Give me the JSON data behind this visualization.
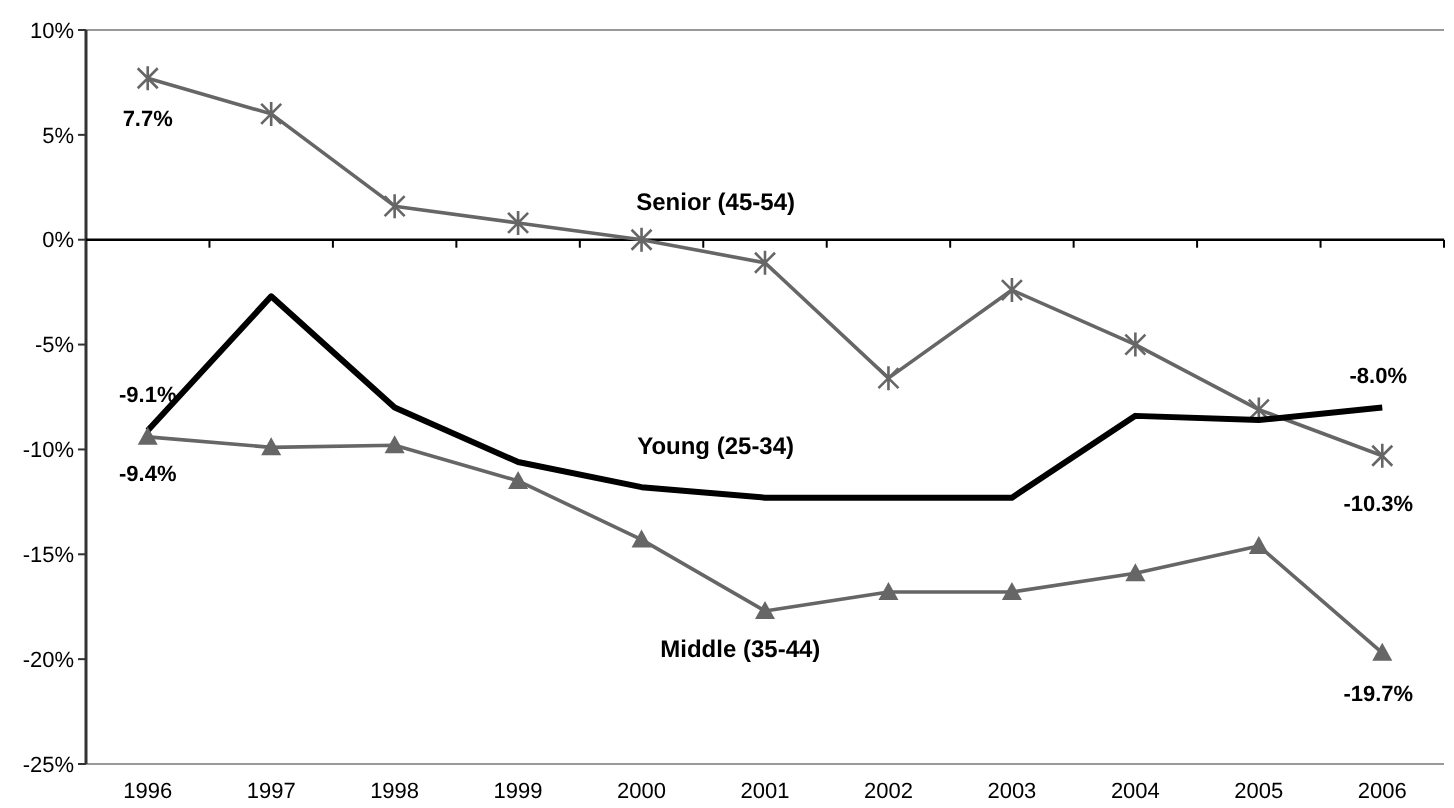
{
  "chart_data": {
    "type": "line",
    "categories": [
      "1996",
      "1997",
      "1998",
      "1999",
      "2000",
      "2001",
      "2002",
      "2003",
      "2004",
      "2005",
      "2006"
    ],
    "ylim": [
      -25,
      10
    ],
    "yticks": [
      {
        "value": 10,
        "label": "10%"
      },
      {
        "value": 5,
        "label": "5%"
      },
      {
        "value": 0,
        "label": "0%"
      },
      {
        "value": -5,
        "label": "-5%"
      },
      {
        "value": -10,
        "label": "-10%"
      },
      {
        "value": -15,
        "label": "-15%"
      },
      {
        "value": -20,
        "label": "-20%"
      },
      {
        "value": -25,
        "label": "-25%"
      }
    ],
    "series": [
      {
        "name": "Senior (45-54)",
        "color": "#666666",
        "marker": "cross",
        "values": [
          7.7,
          6.0,
          1.6,
          0.8,
          0.0,
          -1.1,
          -6.6,
          -2.4,
          -5.0,
          -8.1,
          -10.3
        ],
        "value_labels": [
          "7.7%",
          null,
          null,
          null,
          null,
          null,
          null,
          null,
          null,
          null,
          "-10.3%"
        ]
      },
      {
        "name": "Young (25-34)",
        "color": "#000000",
        "marker": "none",
        "values": [
          -9.1,
          -2.7,
          -8.0,
          -10.6,
          -11.8,
          -12.3,
          -12.3,
          -12.3,
          -8.4,
          -8.6,
          -8.0
        ],
        "value_labels": [
          "-9.1%",
          null,
          null,
          null,
          null,
          null,
          null,
          null,
          null,
          null,
          "-8.0%"
        ]
      },
      {
        "name": "Middle (35-44)",
        "color": "#666666",
        "marker": "triangle",
        "values": [
          -9.4,
          -9.9,
          -9.8,
          -11.5,
          -14.3,
          -17.7,
          -16.8,
          -16.8,
          -15.9,
          -14.6,
          -19.7
        ],
        "value_labels": [
          "-9.4%",
          null,
          null,
          null,
          null,
          null,
          null,
          null,
          null,
          null,
          "-19.7%"
        ]
      }
    ]
  }
}
